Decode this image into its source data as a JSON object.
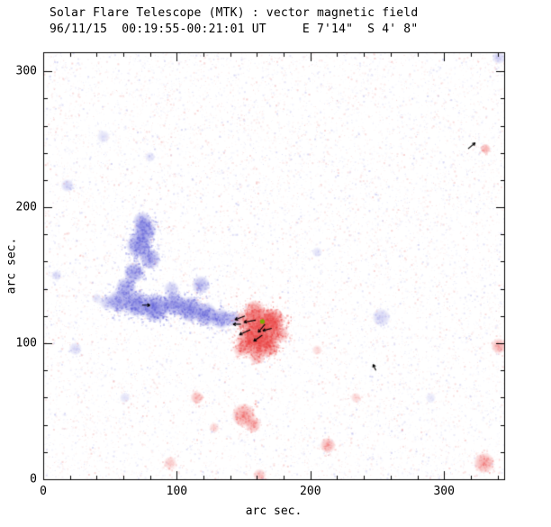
{
  "page": {
    "background": "#ffffff"
  },
  "chart_data": {
    "type": "heatmap",
    "title": "Solar Flare Telescope (MTK) : vector magnetic field",
    "subtitle": "96/11/15  00:19:55-00:21:01 UT     E 7'14\"  S 4' 8\"",
    "xlabel": "arc sec.",
    "ylabel": "arc sec.",
    "xlim": [
      0,
      345
    ],
    "ylim": [
      0,
      314
    ],
    "xticks": [
      0,
      100,
      200,
      300
    ],
    "yticks": [
      0,
      100,
      200,
      300
    ],
    "minor_tick_interval": 20,
    "grid": false,
    "legend": "none",
    "colors": {
      "positive": "#e83838",
      "negative": "#5c5cd6",
      "noise_positive": "#e87878",
      "noise_negative": "#8585de",
      "vector": "#000000",
      "marker": "#7aa800",
      "axis": "#000000"
    },
    "noise": {
      "density": 16000,
      "seed": 42
    },
    "features": [
      {
        "x": 74,
        "y": 190,
        "r": 7,
        "pol": "n",
        "a": 0.6
      },
      {
        "x": 76,
        "y": 183,
        "r": 9,
        "pol": "n",
        "a": 0.8
      },
      {
        "x": 72,
        "y": 172,
        "r": 10,
        "pol": "n",
        "a": 0.85
      },
      {
        "x": 80,
        "y": 162,
        "r": 8,
        "pol": "n",
        "a": 0.7
      },
      {
        "x": 68,
        "y": 152,
        "r": 8,
        "pol": "n",
        "a": 0.75
      },
      {
        "x": 62,
        "y": 141,
        "r": 8,
        "pol": "n",
        "a": 0.7
      },
      {
        "x": 57,
        "y": 131,
        "r": 9,
        "pol": "n",
        "a": 0.75
      },
      {
        "x": 70,
        "y": 129,
        "r": 10,
        "pol": "n",
        "a": 0.85
      },
      {
        "x": 84,
        "y": 126,
        "r": 11,
        "pol": "n",
        "a": 0.9
      },
      {
        "x": 98,
        "y": 129,
        "r": 9,
        "pol": "n",
        "a": 0.8
      },
      {
        "x": 110,
        "y": 125,
        "r": 10,
        "pol": "n",
        "a": 0.85
      },
      {
        "x": 122,
        "y": 121,
        "r": 9,
        "pol": "n",
        "a": 0.8
      },
      {
        "x": 133,
        "y": 118,
        "r": 8,
        "pol": "n",
        "a": 0.7
      },
      {
        "x": 142,
        "y": 118,
        "r": 6,
        "pol": "n",
        "a": 0.55
      },
      {
        "x": 118,
        "y": 143,
        "r": 7,
        "pol": "n",
        "a": 0.55
      },
      {
        "x": 96,
        "y": 140,
        "r": 6,
        "pol": "n",
        "a": 0.4
      },
      {
        "x": 48,
        "y": 130,
        "r": 6,
        "pol": "n",
        "a": 0.4
      },
      {
        "x": 40,
        "y": 133,
        "r": 4,
        "pol": "n",
        "a": 0.25
      },
      {
        "x": 163,
        "y": 112,
        "r": 15,
        "pol": "p",
        "a": 0.95
      },
      {
        "x": 155,
        "y": 101,
        "r": 11,
        "pol": "p",
        "a": 0.9
      },
      {
        "x": 167,
        "y": 99,
        "r": 10,
        "pol": "p",
        "a": 0.85
      },
      {
        "x": 172,
        "y": 117,
        "r": 9,
        "pol": "p",
        "a": 0.8
      },
      {
        "x": 158,
        "y": 124,
        "r": 8,
        "pol": "p",
        "a": 0.65
      },
      {
        "x": 150,
        "y": 117,
        "r": 7,
        "pol": "p",
        "a": 0.55
      },
      {
        "x": 177,
        "y": 107,
        "r": 7,
        "pol": "p",
        "a": 0.55
      },
      {
        "x": 160,
        "y": 90,
        "r": 6,
        "pol": "p",
        "a": 0.5
      },
      {
        "x": 147,
        "y": 95,
        "r": 5,
        "pol": "p",
        "a": 0.4
      },
      {
        "x": 150,
        "y": 47,
        "r": 9,
        "pol": "p",
        "a": 0.6
      },
      {
        "x": 157,
        "y": 40,
        "r": 6,
        "pol": "p",
        "a": 0.5
      },
      {
        "x": 115,
        "y": 60,
        "r": 5,
        "pol": "p",
        "a": 0.45
      },
      {
        "x": 128,
        "y": 38,
        "r": 4,
        "pol": "p",
        "a": 0.3
      },
      {
        "x": 213,
        "y": 25,
        "r": 6,
        "pol": "p",
        "a": 0.5
      },
      {
        "x": 330,
        "y": 12,
        "r": 8,
        "pol": "p",
        "a": 0.55
      },
      {
        "x": 341,
        "y": 98,
        "r": 6,
        "pol": "p",
        "a": 0.5
      },
      {
        "x": 331,
        "y": 243,
        "r": 4,
        "pol": "p",
        "a": 0.5
      },
      {
        "x": 95,
        "y": 12,
        "r": 5,
        "pol": "p",
        "a": 0.35
      },
      {
        "x": 162,
        "y": 3,
        "r": 5,
        "pol": "p",
        "a": 0.4
      },
      {
        "x": 234,
        "y": 60,
        "r": 4,
        "pol": "p",
        "a": 0.3
      },
      {
        "x": 205,
        "y": 95,
        "r": 4,
        "pol": "p",
        "a": 0.25
      },
      {
        "x": 18,
        "y": 216,
        "r": 5,
        "pol": "n",
        "a": 0.35
      },
      {
        "x": 10,
        "y": 150,
        "r": 4,
        "pol": "n",
        "a": 0.3
      },
      {
        "x": 24,
        "y": 96,
        "r": 5,
        "pol": "n",
        "a": 0.3
      },
      {
        "x": 253,
        "y": 119,
        "r": 7,
        "pol": "n",
        "a": 0.35
      },
      {
        "x": 341,
        "y": 310,
        "r": 5,
        "pol": "n",
        "a": 0.35
      },
      {
        "x": 61,
        "y": 60,
        "r": 4,
        "pol": "n",
        "a": 0.25
      },
      {
        "x": 205,
        "y": 167,
        "r": 4,
        "pol": "n",
        "a": 0.25
      },
      {
        "x": 45,
        "y": 252,
        "r": 5,
        "pol": "n",
        "a": 0.25
      },
      {
        "x": 80,
        "y": 237,
        "r": 4,
        "pol": "n",
        "a": 0.25
      },
      {
        "x": 290,
        "y": 60,
        "r": 4,
        "pol": "n",
        "a": 0.2
      }
    ],
    "vectors": [
      {
        "x": 151,
        "y": 120,
        "angle": 200,
        "len": 8
      },
      {
        "x": 159,
        "y": 117,
        "angle": 190,
        "len": 9
      },
      {
        "x": 166,
        "y": 114,
        "angle": 230,
        "len": 8
      },
      {
        "x": 155,
        "y": 110,
        "angle": 205,
        "len": 9
      },
      {
        "x": 164,
        "y": 106,
        "angle": 215,
        "len": 8
      },
      {
        "x": 171,
        "y": 111,
        "angle": 195,
        "len": 7
      },
      {
        "x": 148,
        "y": 114,
        "angle": 180,
        "len": 6
      },
      {
        "x": 74,
        "y": 128,
        "angle": 0,
        "len": 6
      },
      {
        "x": 318,
        "y": 243,
        "angle": 40,
        "len": 7
      },
      {
        "x": 249,
        "y": 80,
        "angle": 115,
        "len": 5
      }
    ],
    "marker": {
      "x": 164,
      "y": 116
    }
  }
}
